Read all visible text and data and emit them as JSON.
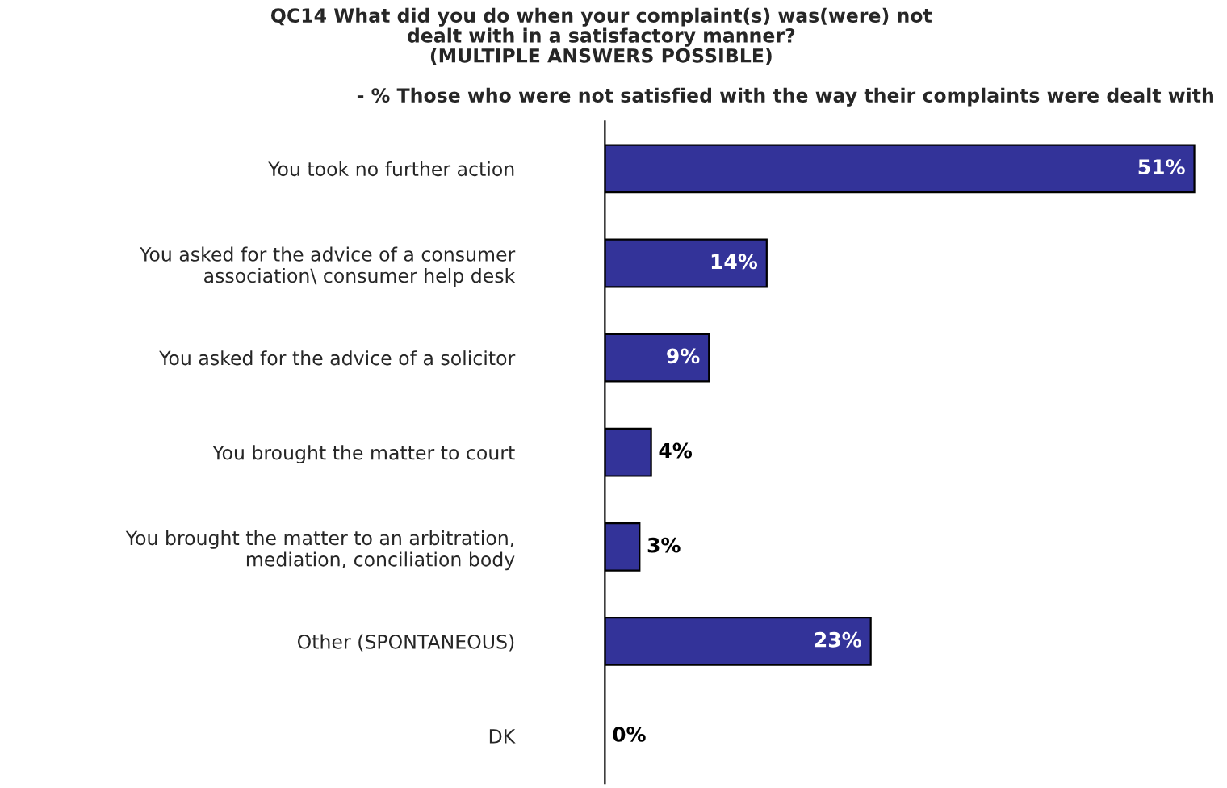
{
  "chart_data": {
    "type": "bar",
    "orientation": "horizontal",
    "title": "QC14 What did you do when your complaint(s) was(were) not\ndealt with in a satisfactory manner?\n(MULTIPLE ANSWERS POSSIBLE)",
    "subtitle": "- % Those who were not satisfied with the way their complaints were dealt with",
    "categories": [
      "You took no further action",
      "You asked for the advice of a consumer\nassociation\\ consumer help desk",
      "You asked for the advice of a solicitor",
      "You brought the matter to court",
      "You brought the matter to an arbitration,\nmediation, conciliation body",
      "Other (SPONTANEOUS)",
      "DK"
    ],
    "values": [
      51,
      14,
      9,
      4,
      3,
      23,
      0
    ],
    "value_labels": [
      "51%",
      "14%",
      "9%",
      "4%",
      "3%",
      "23%",
      "0%"
    ],
    "color": "#333399",
    "grid": false,
    "legend": false
  }
}
